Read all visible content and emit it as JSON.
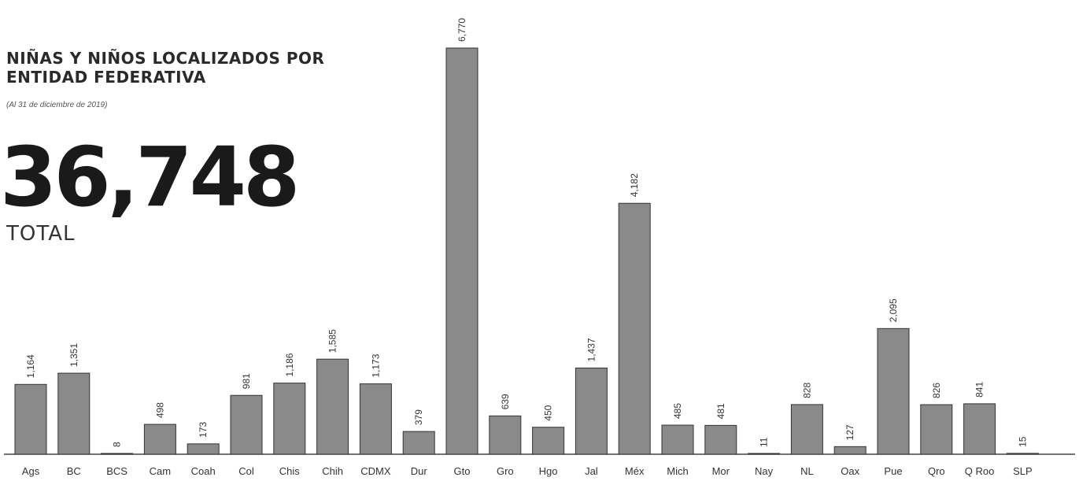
{
  "header": {
    "title_line1": "NIÑAS Y NIÑOS LOCALIZADOS POR",
    "title_line2": "ENTIDAD FEDERATIVA",
    "subtitle": "(Al 31 de diciembre de 2019)",
    "total_value": "36,748",
    "total_label": "TOTAL"
  },
  "colors": {
    "bar": "#8a8a8a",
    "bar_outline": "#333333",
    "text": "#2a2a2a"
  },
  "chart_data": {
    "type": "bar",
    "title": "NIÑAS Y NIÑOS LOCALIZADOS POR ENTIDAD FEDERATIVA",
    "subtitle": "(Al 31 de diciembre de 2019)",
    "xlabel": "",
    "ylabel": "",
    "grid": false,
    "legend": "none",
    "ylim": [
      0,
      6770
    ],
    "categories": [
      "Ags",
      "BC",
      "BCS",
      "Cam",
      "Coah",
      "Col",
      "Chis",
      "Chih",
      "CDMX",
      "Dur",
      "Gto",
      "Gro",
      "Hgo",
      "Jal",
      "Méx",
      "Mich",
      "Mor",
      "Nay",
      "NL",
      "Oax",
      "Pue",
      "Qro",
      "Q Roo",
      "SLP"
    ],
    "values": [
      1164,
      1351,
      8,
      498,
      173,
      981,
      1186,
      1585,
      1173,
      379,
      6770,
      639,
      450,
      1437,
      4182,
      485,
      481,
      11,
      828,
      127,
      2095,
      826,
      841,
      15
    ],
    "value_labels": [
      "1,164",
      "1,351",
      "8",
      "498",
      "173",
      "981",
      "1,186",
      "1,585",
      "1,173",
      "379",
      "6,770",
      "639",
      "450",
      "1,437",
      "4,182",
      "485",
      "481",
      "11",
      "828",
      "127",
      "2,095",
      "826",
      "841",
      "15"
    ]
  }
}
